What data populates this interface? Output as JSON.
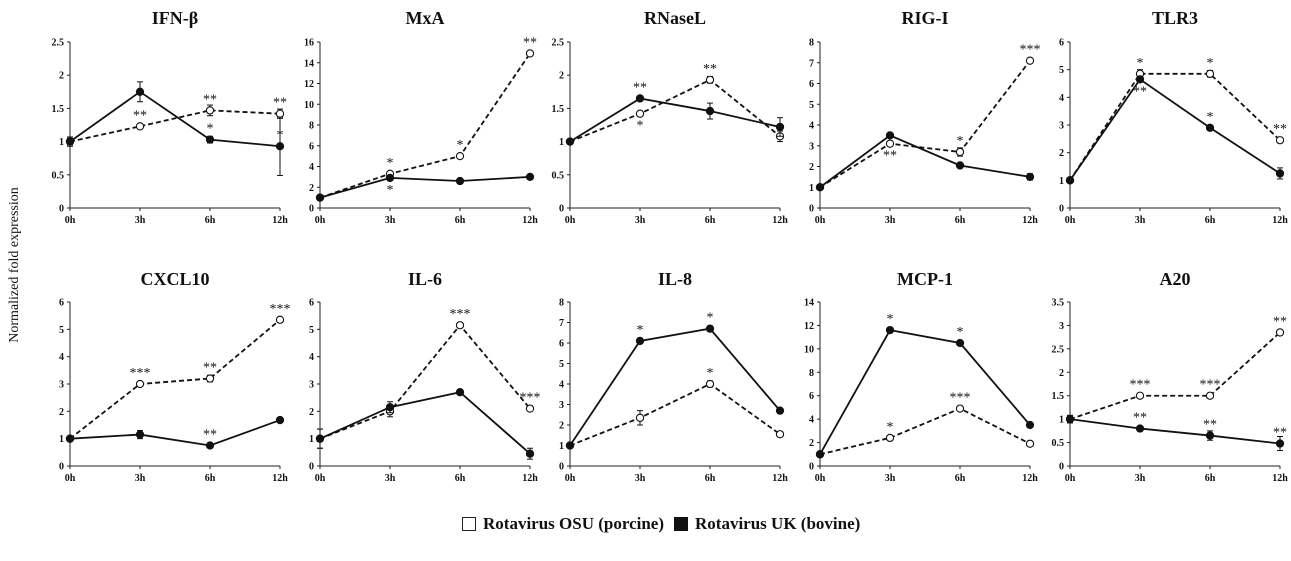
{
  "figure": {
    "ylabel": "Normalized fold expression",
    "legend": [
      {
        "label": "Rotavirus OSU (porcine)",
        "style": "open-circle-dashed"
      },
      {
        "label": "Rotavirus UK (bovine)",
        "style": "filled-circle-solid"
      }
    ]
  },
  "chart_data": [
    {
      "type": "line",
      "title": "IFN-β",
      "categories": [
        "0h",
        "3h",
        "6h",
        "12h"
      ],
      "ylim": [
        0,
        2.5
      ],
      "yticks": [
        "0",
        "0.5",
        "1",
        "1.5",
        "2",
        "2.5"
      ],
      "series": [
        {
          "name": "Rotavirus OSU (porcine)",
          "values": [
            1.0,
            1.23,
            1.47,
            1.42
          ],
          "errors": [
            0.07,
            0.03,
            0.08,
            0.07
          ]
        },
        {
          "name": "Rotavirus UK (bovine)",
          "values": [
            1.0,
            1.75,
            1.03,
            0.93
          ],
          "errors": [
            0.05,
            0.15,
            0.05,
            0.44
          ]
        }
      ],
      "annotations": [
        {
          "text": "**",
          "x": "3h",
          "y": 1.23,
          "pos": "above"
        },
        {
          "text": "**",
          "x": "6h",
          "y": 1.47,
          "pos": "above"
        },
        {
          "text": "**",
          "x": "12h",
          "y": 1.42,
          "pos": "above"
        },
        {
          "text": "*",
          "x": "6h",
          "y": 1.03,
          "pos": "above"
        },
        {
          "text": "*",
          "x": "12h",
          "y": 0.93,
          "pos": "above"
        }
      ]
    },
    {
      "type": "line",
      "title": "MxA",
      "categories": [
        "0h",
        "3h",
        "6h",
        "12h"
      ],
      "ylim": [
        0,
        16
      ],
      "yticks": [
        "0",
        "2",
        "4",
        "6",
        "8",
        "10",
        "12",
        "14",
        "16"
      ],
      "series": [
        {
          "name": "Rotavirus OSU (porcine)",
          "values": [
            1.0,
            3.3,
            5.0,
            14.9
          ],
          "errors": [
            0,
            0.2,
            0.2,
            0.2
          ]
        },
        {
          "name": "Rotavirus UK (bovine)",
          "values": [
            1.0,
            2.9,
            2.6,
            3.0
          ],
          "errors": [
            0,
            0.1,
            0.1,
            0.1
          ]
        }
      ],
      "annotations": [
        {
          "text": "*",
          "x": "3h",
          "y": 3.3,
          "pos": "above"
        },
        {
          "text": "*",
          "x": "3h",
          "y": 2.9,
          "pos": "below"
        },
        {
          "text": "*",
          "x": "6h",
          "y": 5.0,
          "pos": "above"
        },
        {
          "text": "**",
          "x": "12h",
          "y": 14.9,
          "pos": "above"
        }
      ]
    },
    {
      "type": "line",
      "title": "RNaseL",
      "categories": [
        "0h",
        "3h",
        "6h",
        "12h"
      ],
      "ylim": [
        0,
        2.5
      ],
      "yticks": [
        "0",
        "0.5",
        "1",
        "1.5",
        "2",
        "2.5"
      ],
      "series": [
        {
          "name": "Rotavirus OSU (porcine)",
          "values": [
            1.0,
            1.42,
            1.93,
            1.08
          ],
          "errors": [
            0.02,
            0.03,
            0.05,
            0.08
          ]
        },
        {
          "name": "Rotavirus UK (bovine)",
          "values": [
            1.0,
            1.65,
            1.46,
            1.22
          ],
          "errors": [
            0.02,
            0.03,
            0.12,
            0.14
          ]
        }
      ],
      "annotations": [
        {
          "text": "**",
          "x": "3h",
          "y": 1.65,
          "pos": "above"
        },
        {
          "text": "*",
          "x": "3h",
          "y": 1.42,
          "pos": "below"
        },
        {
          "text": "**",
          "x": "6h",
          "y": 1.93,
          "pos": "above"
        }
      ]
    },
    {
      "type": "line",
      "title": "RIG-I",
      "categories": [
        "0h",
        "3h",
        "6h",
        "12h"
      ],
      "ylim": [
        0,
        8
      ],
      "yticks": [
        "0",
        "1",
        "2",
        "3",
        "4",
        "5",
        "6",
        "7",
        "8"
      ],
      "series": [
        {
          "name": "Rotavirus OSU (porcine)",
          "values": [
            1.0,
            3.1,
            2.7,
            7.1
          ],
          "errors": [
            0.05,
            0.1,
            0.2,
            0.1
          ]
        },
        {
          "name": "Rotavirus UK (bovine)",
          "values": [
            1.0,
            3.5,
            2.05,
            1.5
          ],
          "errors": [
            0.05,
            0.1,
            0.05,
            0.15
          ]
        }
      ],
      "annotations": [
        {
          "text": "**",
          "x": "3h",
          "y": 3.1,
          "pos": "below"
        },
        {
          "text": "*",
          "x": "6h",
          "y": 2.7,
          "pos": "above"
        },
        {
          "text": "***",
          "x": "12h",
          "y": 7.1,
          "pos": "above"
        }
      ]
    },
    {
      "type": "line",
      "title": "TLR3",
      "categories": [
        "0h",
        "3h",
        "6h",
        "12h"
      ],
      "ylim": [
        0,
        6
      ],
      "yticks": [
        "0",
        "1",
        "2",
        "3",
        "4",
        "5",
        "6"
      ],
      "series": [
        {
          "name": "Rotavirus OSU (porcine)",
          "values": [
            1.0,
            4.85,
            4.85,
            2.45
          ],
          "errors": [
            0.03,
            0.15,
            0.12,
            0.1
          ]
        },
        {
          "name": "Rotavirus UK (bovine)",
          "values": [
            1.0,
            4.65,
            2.9,
            1.25
          ],
          "errors": [
            0.03,
            0.1,
            0.08,
            0.2
          ]
        }
      ],
      "annotations": [
        {
          "text": "*",
          "x": "3h",
          "y": 4.85,
          "pos": "above"
        },
        {
          "text": "**",
          "x": "3h",
          "y": 4.65,
          "pos": "below"
        },
        {
          "text": "*",
          "x": "6h",
          "y": 4.85,
          "pos": "above"
        },
        {
          "text": "*",
          "x": "6h",
          "y": 2.9,
          "pos": "above"
        },
        {
          "text": "**",
          "x": "12h",
          "y": 2.45,
          "pos": "above"
        }
      ]
    },
    {
      "type": "line",
      "title": "CXCL10",
      "categories": [
        "0h",
        "3h",
        "6h",
        "12h"
      ],
      "ylim": [
        0,
        6
      ],
      "yticks": [
        "0",
        "1",
        "2",
        "3",
        "4",
        "5",
        "6"
      ],
      "series": [
        {
          "name": "Rotavirus OSU (porcine)",
          "values": [
            1.0,
            3.0,
            3.2,
            5.35
          ],
          "errors": [
            0,
            0.05,
            0.12,
            0.05
          ]
        },
        {
          "name": "Rotavirus UK (bovine)",
          "values": [
            1.0,
            1.15,
            0.75,
            1.68
          ],
          "errors": [
            0,
            0.15,
            0.05,
            0.05
          ]
        }
      ],
      "annotations": [
        {
          "text": "***",
          "x": "3h",
          "y": 3.0,
          "pos": "above"
        },
        {
          "text": "**",
          "x": "6h",
          "y": 3.2,
          "pos": "above"
        },
        {
          "text": "**",
          "x": "6h",
          "y": 0.75,
          "pos": "above"
        },
        {
          "text": "***",
          "x": "12h",
          "y": 5.35,
          "pos": "above"
        }
      ]
    },
    {
      "type": "line",
      "title": "IL-6",
      "categories": [
        "0h",
        "3h",
        "6h",
        "12h"
      ],
      "ylim": [
        0,
        6
      ],
      "yticks": [
        "0",
        "1",
        "2",
        "3",
        "4",
        "5",
        "6"
      ],
      "series": [
        {
          "name": "Rotavirus OSU (porcine)",
          "values": [
            1.0,
            2.0,
            5.15,
            2.1
          ],
          "errors": [
            0.35,
            0.2,
            0.1,
            0.08
          ]
        },
        {
          "name": "Rotavirus UK (bovine)",
          "values": [
            1.0,
            2.15,
            2.7,
            0.45
          ],
          "errors": [
            0.35,
            0.2,
            0.05,
            0.2
          ]
        }
      ],
      "annotations": [
        {
          "text": "***",
          "x": "6h",
          "y": 5.15,
          "pos": "above"
        },
        {
          "text": "***",
          "x": "12h",
          "y": 2.1,
          "pos": "above"
        }
      ]
    },
    {
      "type": "line",
      "title": "IL-8",
      "categories": [
        "0h",
        "3h",
        "6h",
        "12h"
      ],
      "ylim": [
        0,
        8
      ],
      "yticks": [
        "0",
        "1",
        "2",
        "3",
        "4",
        "5",
        "6",
        "7",
        "8"
      ],
      "series": [
        {
          "name": "Rotavirus OSU (porcine)",
          "values": [
            1.0,
            2.35,
            4.0,
            1.55
          ],
          "errors": [
            0.05,
            0.35,
            0.15,
            0.05
          ]
        },
        {
          "name": "Rotavirus UK (bovine)",
          "values": [
            1.0,
            6.1,
            6.7,
            2.7
          ],
          "errors": [
            0.05,
            0.1,
            0.1,
            0.1
          ]
        }
      ],
      "annotations": [
        {
          "text": "*",
          "x": "3h",
          "y": 6.1,
          "pos": "above"
        },
        {
          "text": "*",
          "x": "6h",
          "y": 6.7,
          "pos": "above"
        },
        {
          "text": "*",
          "x": "6h",
          "y": 4.0,
          "pos": "above"
        }
      ]
    },
    {
      "type": "line",
      "title": "MCP-1",
      "categories": [
        "0h",
        "3h",
        "6h",
        "12h"
      ],
      "ylim": [
        0,
        14
      ],
      "yticks": [
        "0",
        "2",
        "4",
        "6",
        "8",
        "10",
        "12",
        "14"
      ],
      "series": [
        {
          "name": "Rotavirus OSU (porcine)",
          "values": [
            1.0,
            2.4,
            4.9,
            1.9
          ],
          "errors": [
            0.05,
            0.1,
            0.15,
            0.1
          ]
        },
        {
          "name": "Rotavirus UK (bovine)",
          "values": [
            1.0,
            11.6,
            10.5,
            3.5
          ],
          "errors": [
            0.05,
            0.15,
            0.15,
            0.15
          ]
        }
      ],
      "annotations": [
        {
          "text": "*",
          "x": "3h",
          "y": 11.6,
          "pos": "above"
        },
        {
          "text": "*",
          "x": "6h",
          "y": 10.5,
          "pos": "above"
        },
        {
          "text": "*",
          "x": "3h",
          "y": 2.4,
          "pos": "above"
        },
        {
          "text": "***",
          "x": "6h",
          "y": 4.9,
          "pos": "above"
        }
      ]
    },
    {
      "type": "line",
      "title": "A20",
      "categories": [
        "0h",
        "3h",
        "6h",
        "12h"
      ],
      "ylim": [
        0,
        3.5
      ],
      "yticks": [
        "0",
        "0.5",
        "1",
        "1.5",
        "2",
        "2.5",
        "3",
        "3.5"
      ],
      "series": [
        {
          "name": "Rotavirus OSU (porcine)",
          "values": [
            1.0,
            1.5,
            1.5,
            2.85
          ],
          "errors": [
            0.08,
            0.03,
            0.03,
            0.05
          ]
        },
        {
          "name": "Rotavirus UK (bovine)",
          "values": [
            1.0,
            0.8,
            0.65,
            0.48
          ],
          "errors": [
            0.08,
            0.03,
            0.1,
            0.15
          ]
        }
      ],
      "annotations": [
        {
          "text": "***",
          "x": "3h",
          "y": 1.5,
          "pos": "above"
        },
        {
          "text": "***",
          "x": "6h",
          "y": 1.5,
          "pos": "above"
        },
        {
          "text": "**",
          "x": "12h",
          "y": 2.85,
          "pos": "above"
        },
        {
          "text": "**",
          "x": "3h",
          "y": 0.8,
          "pos": "above"
        },
        {
          "text": "**",
          "x": "6h",
          "y": 0.65,
          "pos": "above"
        },
        {
          "text": "**",
          "x": "12h",
          "y": 0.48,
          "pos": "above"
        }
      ]
    }
  ]
}
